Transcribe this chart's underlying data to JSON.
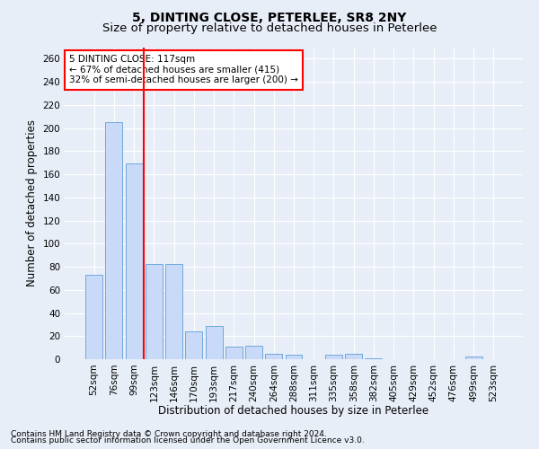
{
  "title1": "5, DINTING CLOSE, PETERLEE, SR8 2NY",
  "title2": "Size of property relative to detached houses in Peterlee",
  "xlabel": "Distribution of detached houses by size in Peterlee",
  "ylabel": "Number of detached properties",
  "categories": [
    "52sqm",
    "76sqm",
    "99sqm",
    "123sqm",
    "146sqm",
    "170sqm",
    "193sqm",
    "217sqm",
    "240sqm",
    "264sqm",
    "288sqm",
    "311sqm",
    "335sqm",
    "358sqm",
    "382sqm",
    "405sqm",
    "429sqm",
    "452sqm",
    "476sqm",
    "499sqm",
    "523sqm"
  ],
  "values": [
    73,
    205,
    169,
    82,
    82,
    24,
    29,
    11,
    12,
    5,
    4,
    0,
    4,
    5,
    1,
    0,
    0,
    0,
    0,
    2,
    0
  ],
  "bar_color": "#c9daf8",
  "bar_edge_color": "#6fa8dc",
  "vline_x": 2.5,
  "vline_color": "red",
  "annotation_text": "5 DINTING CLOSE: 117sqm\n← 67% of detached houses are smaller (415)\n32% of semi-detached houses are larger (200) →",
  "annotation_box_color": "white",
  "annotation_box_edge_color": "red",
  "ylim": [
    0,
    270
  ],
  "yticks": [
    0,
    20,
    40,
    60,
    80,
    100,
    120,
    140,
    160,
    180,
    200,
    220,
    240,
    260
  ],
  "footnote1": "Contains HM Land Registry data © Crown copyright and database right 2024.",
  "footnote2": "Contains public sector information licensed under the Open Government Licence v3.0.",
  "bg_color": "#e8eef8",
  "grid_color": "white",
  "title1_fontsize": 10,
  "title2_fontsize": 9.5,
  "xlabel_fontsize": 8.5,
  "ylabel_fontsize": 8.5,
  "footnote_fontsize": 6.5,
  "tick_labelsize": 7.5,
  "annot_fontsize": 7.5
}
